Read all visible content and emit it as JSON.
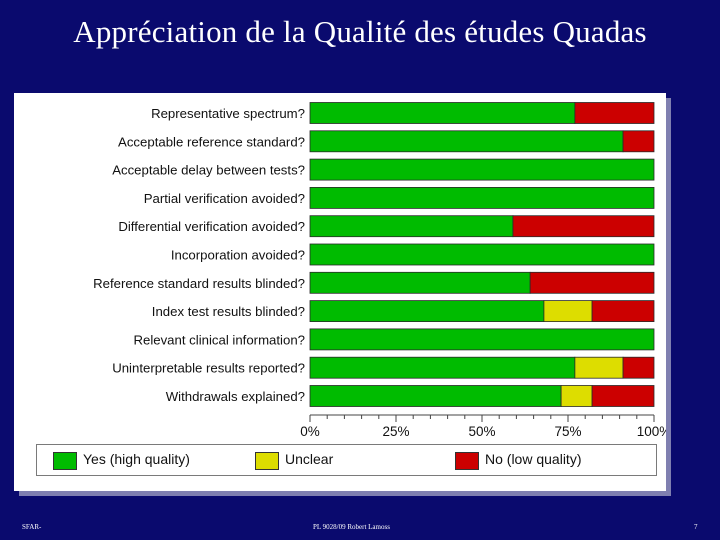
{
  "slide": {
    "title": "Appréciation de la Qualité des études Quadas",
    "footer_left": "SFAR-",
    "footer_center": "PL 9028/09 Robert Lamoss",
    "footer_right": "7"
  },
  "chart_data": {
    "type": "bar",
    "orientation": "horizontal",
    "stacked": true,
    "categories": [
      "Representative spectrum?",
      "Acceptable reference standard?",
      "Acceptable delay between tests?",
      "Partial verification avoided?",
      "Differential verification avoided?",
      "Incorporation avoided?",
      "Reference standard results blinded?",
      "Index test results blinded?",
      "Relevant clinical information?",
      "Uninterpretable results reported?",
      "Withdrawals explained?"
    ],
    "series": [
      {
        "name": "Yes (high quality)",
        "color": "#00bb00",
        "values": [
          77,
          91,
          100,
          100,
          59,
          100,
          64,
          68,
          100,
          77,
          73
        ]
      },
      {
        "name": "Unclear",
        "color": "#dddd00",
        "values": [
          0,
          0,
          0,
          0,
          0,
          0,
          0,
          14,
          0,
          14,
          9
        ]
      },
      {
        "name": "No (low quality)",
        "color": "#cc0000",
        "values": [
          23,
          9,
          0,
          0,
          41,
          0,
          36,
          18,
          0,
          9,
          18
        ]
      }
    ],
    "xticks": [
      "0%",
      "25%",
      "50%",
      "75%",
      "100%"
    ],
    "xlim": [
      0,
      100
    ],
    "legend_position": "bottom"
  }
}
